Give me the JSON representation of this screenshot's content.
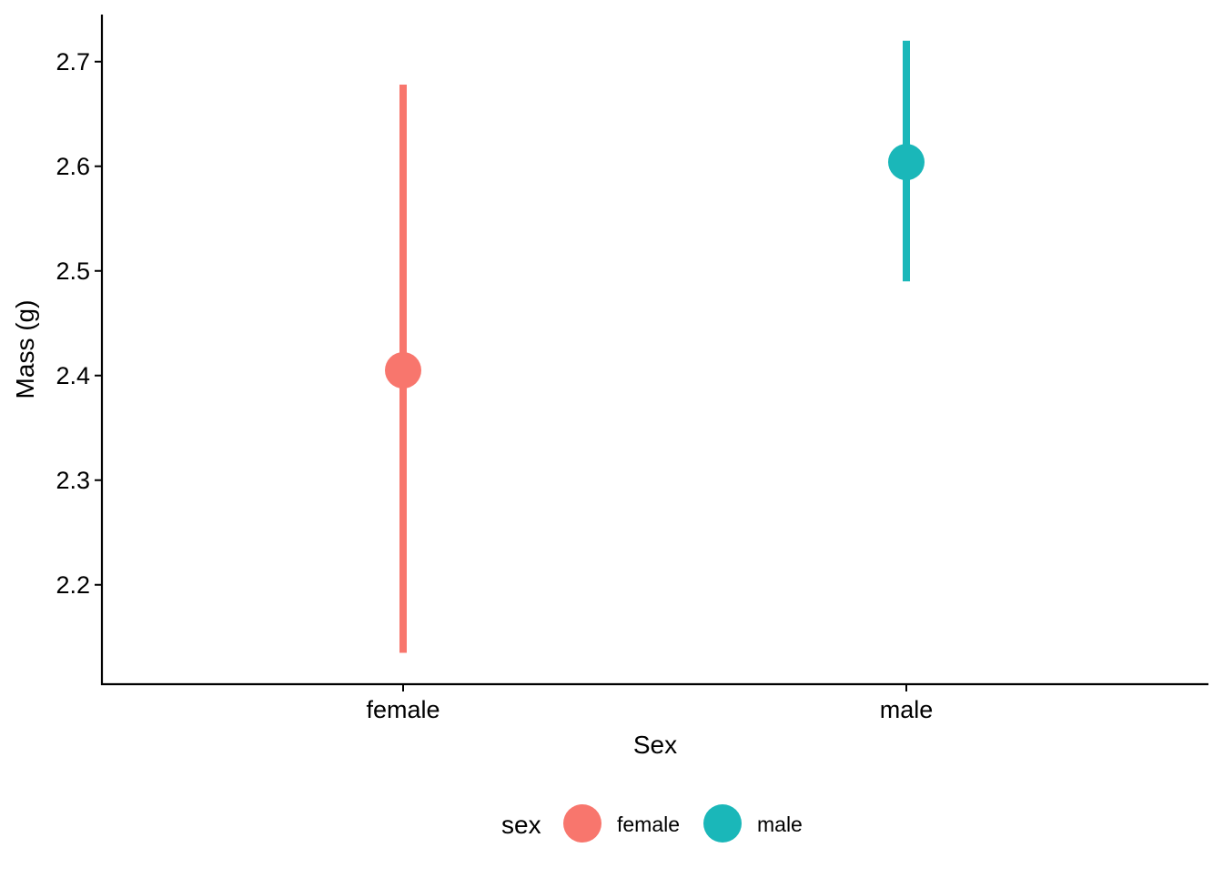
{
  "chart_data": {
    "type": "scatter",
    "subtype": "point-range",
    "title": "",
    "xlabel": "Sex",
    "ylabel": "Mass (g)",
    "categories": [
      "female",
      "male"
    ],
    "series": [
      {
        "name": "female",
        "category": "female",
        "value": 2.405,
        "low": 2.135,
        "high": 2.678,
        "color": "#F8766D"
      },
      {
        "name": "male",
        "category": "male",
        "value": 2.604,
        "low": 2.49,
        "high": 2.72,
        "color": "#1AB7B9"
      }
    ],
    "ylim": [
      2.105,
      2.745
    ],
    "yticks": [
      "2.2",
      "2.3",
      "2.4",
      "2.5",
      "2.6",
      "2.7"
    ],
    "grid": false,
    "legend": {
      "title": "sex",
      "position": "bottom",
      "items": [
        {
          "label": "female",
          "color": "#F8766D"
        },
        {
          "label": "male",
          "color": "#1AB7B9"
        }
      ]
    }
  }
}
